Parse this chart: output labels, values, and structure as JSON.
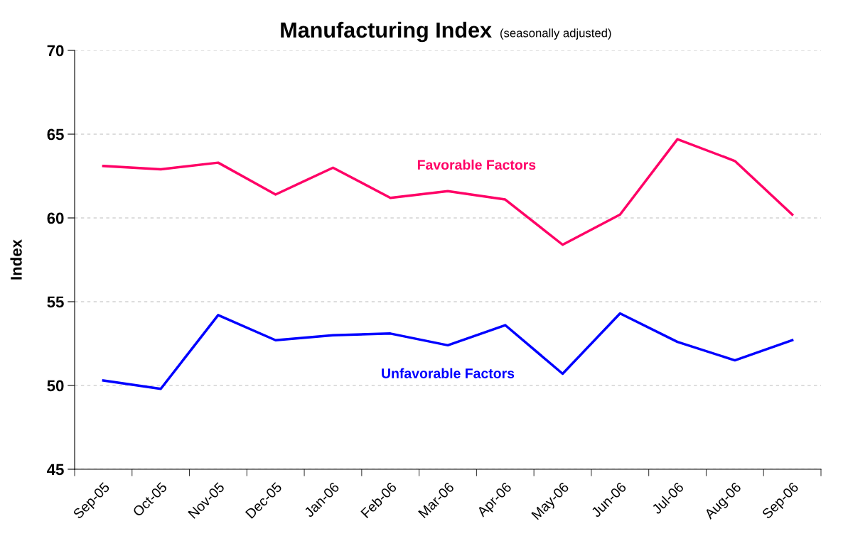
{
  "chart_data": {
    "type": "line",
    "title": "Manufacturing Index",
    "subtitle": "(seasonally adjusted)",
    "ylabel": "Index",
    "categories": [
      "Sep-05",
      "Oct-05",
      "Nov-05",
      "Dec-05",
      "Jan-06",
      "Feb-06",
      "Mar-06",
      "Apr-06",
      "May-06",
      "Jun-06",
      "Jul-06",
      "Aug-06",
      "Sep-06"
    ],
    "series": [
      {
        "name": "Favorable Factors",
        "color": "#ff0066",
        "values": [
          63.1,
          62.9,
          63.3,
          61.4,
          63.0,
          61.2,
          61.6,
          61.1,
          58.4,
          60.2,
          64.7,
          63.4,
          60.2
        ]
      },
      {
        "name": "Unfavorable Factors",
        "color": "#0000ff",
        "values": [
          50.3,
          49.8,
          54.2,
          52.7,
          53.0,
          53.1,
          52.4,
          53.6,
          50.7,
          54.3,
          52.6,
          51.5,
          52.7
        ]
      }
    ],
    "ylim": [
      45,
      70
    ],
    "yticks": [
      45,
      50,
      55,
      60,
      65,
      70
    ],
    "grid": "y",
    "legend": false,
    "marker": "none",
    "line_style": "solid"
  }
}
